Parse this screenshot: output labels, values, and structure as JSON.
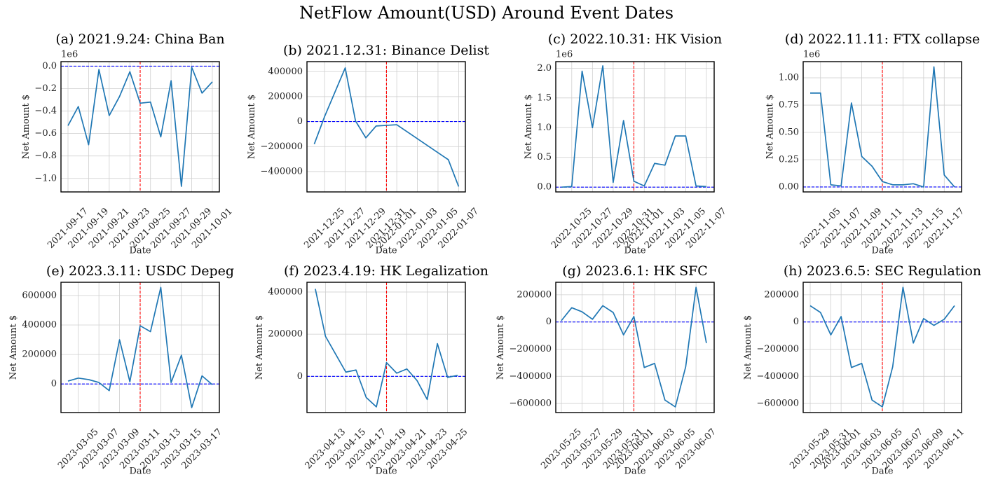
{
  "title": "NetFlow Amount(USD) Around Event Dates",
  "chart_data": [
    {
      "type": "line",
      "title": "(a) 2021.9.24: China Ban",
      "xlabel": "Date",
      "ylabel": "Net Amount $",
      "y_offset_label": "1e6",
      "x": [
        "2021-09-17",
        "2021-09-18",
        "2021-09-19",
        "2021-09-20",
        "2021-09-21",
        "2021-09-22",
        "2021-09-23",
        "2021-09-24",
        "2021-09-25",
        "2021-09-26",
        "2021-09-27",
        "2021-09-28",
        "2021-09-29",
        "2021-09-30",
        "2021-10-01"
      ],
      "values": [
        -0.53,
        -0.36,
        -0.7,
        -0.03,
        -0.44,
        -0.27,
        -0.05,
        -0.33,
        -0.32,
        -0.63,
        -0.13,
        -1.07,
        -0.01,
        -0.24,
        -0.14
      ],
      "color": "#1f77b4",
      "event_x": "2021-09-24",
      "event_color": "#ff0000",
      "hline": 0,
      "hline_color": "#0000ff",
      "grid": true,
      "xlim": [
        "2021-09-16T07:40",
        "2021-10-01T16:20"
      ],
      "xticks": [
        "2021-09-17",
        "2021-09-19",
        "2021-09-21",
        "2021-09-23",
        "2021-09-25",
        "2021-09-27",
        "2021-09-29",
        "2021-10-01"
      ],
      "ylim": [
        -1.12,
        0.04
      ],
      "yticks": [
        {
          "value": 0,
          "label": "0.0"
        },
        {
          "value": -0.2,
          "label": "−0.2"
        },
        {
          "value": -0.4,
          "label": "−0.4"
        },
        {
          "value": -0.6,
          "label": "−0.6"
        },
        {
          "value": -0.8,
          "label": "−0.8"
        },
        {
          "value": -1.0,
          "label": "−1.0"
        }
      ]
    },
    {
      "type": "line",
      "title": "(b) 2021.12.31: Binance Delist",
      "xlabel": "Date",
      "ylabel": "Net Amount $",
      "x": [
        "2021-12-24",
        "2021-12-25",
        "2021-12-27",
        "2021-12-28",
        "2021-12-29",
        "2021-12-30",
        "2022-01-01",
        "2022-01-06",
        "2022-01-07"
      ],
      "values": [
        -180000,
        40000,
        430000,
        5000,
        -130000,
        -35000,
        -25000,
        -305000,
        -520000
      ],
      "color": "#1f77b4",
      "event_x": "2021-12-31",
      "event_color": "#ff0000",
      "hline": 0,
      "hline_color": "#0000ff",
      "grid": true,
      "xlim": [
        "2021-12-23T07:00",
        "2022-01-07T15:40"
      ],
      "xticks": [
        "2021-12-25",
        "2021-12-27",
        "2021-12-29",
        "2021-12-31",
        "2022-01-01",
        "2022-01-03",
        "2022-01-05",
        "2022-01-07"
      ],
      "ylim": [
        -563000,
        480000
      ],
      "yticks": [
        400000,
        200000,
        0,
        {
          "value": -200000,
          "label": "−200000"
        },
        {
          "value": -400000,
          "label": "−400000"
        }
      ]
    },
    {
      "type": "line",
      "title": "(c) 2022.10.31: HK Vision",
      "xlabel": "Date",
      "ylabel": "Net Amount $",
      "y_offset_label": "1e6",
      "x": [
        "2022-10-24",
        "2022-10-25",
        "2022-10-26",
        "2022-10-27",
        "2022-10-28",
        "2022-10-29",
        "2022-10-30",
        "2022-10-31",
        "2022-11-01",
        "2022-11-02",
        "2022-11-03",
        "2022-11-04",
        "2022-11-05",
        "2022-11-06",
        "2022-11-07"
      ],
      "values": [
        0.0,
        0.01,
        1.95,
        1.0,
        2.04,
        0.08,
        1.12,
        0.1,
        0.02,
        0.4,
        0.37,
        0.86,
        0.86,
        0.02,
        0.01
      ],
      "color": "#1f77b4",
      "event_x": "2022-10-31",
      "event_color": "#ff0000",
      "hline": 0,
      "hline_color": "#0000ff",
      "grid": true,
      "xlim": [
        "2022-10-23T11:00",
        "2022-11-07T18:00"
      ],
      "xticks": [
        "2022-10-25",
        "2022-10-27",
        "2022-10-29",
        "2022-10-31",
        "2022-11-01",
        "2022-11-03",
        "2022-11-05",
        "2022-11-07"
      ],
      "ylim": [
        -0.08,
        2.11
      ],
      "yticks": [
        {
          "value": 0,
          "label": "0.0"
        },
        {
          "value": 0.5,
          "label": "0.5"
        },
        {
          "value": 1,
          "label": "1.0"
        },
        {
          "value": 1.5,
          "label": "1.5"
        },
        {
          "value": 2,
          "label": "2.0"
        }
      ]
    },
    {
      "type": "line",
      "title": "(d) 2022.11.11: FTX collapse",
      "xlabel": "Date",
      "ylabel": "Net Amount $",
      "y_offset_label": "1e6",
      "x": [
        "2022-11-04",
        "2022-11-05",
        "2022-11-06",
        "2022-11-07",
        "2022-11-08",
        "2022-11-09",
        "2022-11-10",
        "2022-11-11",
        "2022-11-12",
        "2022-11-13",
        "2022-11-14",
        "2022-11-15",
        "2022-11-16",
        "2022-11-17",
        "2022-11-18"
      ],
      "values": [
        0.86,
        0.86,
        0.02,
        0.01,
        0.77,
        0.28,
        0.19,
        0.05,
        0.02,
        0.02,
        0.03,
        0.0,
        1.1,
        0.11,
        0.0
      ],
      "color": "#1f77b4",
      "event_x": "2022-11-11",
      "event_color": "#ff0000",
      "hline": 0,
      "hline_color": "#0000ff",
      "grid": true,
      "xlim": [
        "2022-11-03T07:40",
        "2022-11-18T16:20"
      ],
      "xticks": [
        "2022-11-05",
        "2022-11-07",
        "2022-11-09",
        "2022-11-11",
        "2022-11-13",
        "2022-11-15",
        "2022-11-17"
      ],
      "ylim": [
        -0.045,
        1.148
      ],
      "yticks": [
        {
          "value": 0,
          "label": "0.00"
        },
        {
          "value": 0.25,
          "label": "0.25"
        },
        {
          "value": 0.5,
          "label": "0.50"
        },
        {
          "value": 0.75,
          "label": "0.75"
        },
        {
          "value": 1,
          "label": "1.00"
        }
      ]
    },
    {
      "type": "line",
      "title": "(e) 2023.3.11: USDC Depeg",
      "xlabel": "Date",
      "ylabel": "Net Amount $",
      "x": [
        "2023-03-04",
        "2023-03-05",
        "2023-03-06",
        "2023-03-07",
        "2023-03-08",
        "2023-03-09",
        "2023-03-10",
        "2023-03-11",
        "2023-03-12",
        "2023-03-13",
        "2023-03-14",
        "2023-03-15",
        "2023-03-16",
        "2023-03-17",
        "2023-03-18"
      ],
      "values": [
        20000,
        40000,
        30000,
        10000,
        -45000,
        300000,
        15000,
        395000,
        355000,
        655000,
        10000,
        195000,
        -160000,
        55000,
        -5000
      ],
      "color": "#1f77b4",
      "event_x": "2023-03-11",
      "event_color": "#ff0000",
      "hline": 0,
      "hline_color": "#0000ff",
      "grid": true,
      "xlim": [
        "2023-03-03T07:40",
        "2023-03-18T16:20"
      ],
      "xticks": [
        "2023-03-05",
        "2023-03-07",
        "2023-03-09",
        "2023-03-11",
        "2023-03-13",
        "2023-03-15",
        "2023-03-17"
      ],
      "ylim": [
        -193700,
        689800
      ],
      "yticks": [
        0,
        200000,
        400000,
        600000
      ]
    },
    {
      "type": "line",
      "title": "(f) 2023.4.19: HK Legalization",
      "xlabel": "Date",
      "ylabel": "Net Amount $",
      "x": [
        "2023-04-12",
        "2023-04-13",
        "2023-04-15",
        "2023-04-16",
        "2023-04-17",
        "2023-04-18",
        "2023-04-19",
        "2023-04-20",
        "2023-04-21",
        "2023-04-22",
        "2023-04-23",
        "2023-04-24",
        "2023-04-25",
        "2023-04-26"
      ],
      "values": [
        415000,
        190000,
        20000,
        30000,
        -100000,
        -145000,
        65000,
        15000,
        35000,
        -20000,
        -110000,
        155000,
        -5000,
        5000
      ],
      "color": "#1f77b4",
      "event_x": "2023-04-19",
      "event_color": "#ff0000",
      "hline": 0,
      "hline_color": "#0000ff",
      "grid": true,
      "xlim": [
        "2023-04-11T04:20",
        "2023-04-26T18:00"
      ],
      "xticks": [
        "2023-04-13",
        "2023-04-15",
        "2023-04-17",
        "2023-04-19",
        "2023-04-21",
        "2023-04-23",
        "2023-04-25"
      ],
      "ylim": [
        -171900,
        446300
      ],
      "yticks": [
        0,
        200000,
        400000
      ]
    },
    {
      "type": "line",
      "title": "(g) 2023.6.1: HK SFC",
      "xlabel": "Date",
      "ylabel": "Net Amount $",
      "x": [
        "2023-05-25",
        "2023-05-26",
        "2023-05-27",
        "2023-05-28",
        "2023-05-29",
        "2023-05-30",
        "2023-05-31",
        "2023-06-01",
        "2023-06-02",
        "2023-06-03",
        "2023-06-04",
        "2023-06-05",
        "2023-06-06",
        "2023-06-07",
        "2023-06-08"
      ],
      "values": [
        10000,
        105000,
        75000,
        20000,
        120000,
        70000,
        -95000,
        40000,
        -335000,
        -305000,
        -575000,
        -625000,
        -330000,
        255000,
        -155000
      ],
      "color": "#1f77b4",
      "event_x": "2023-06-01",
      "event_color": "#ff0000",
      "hline": 0,
      "hline_color": "#0000ff",
      "grid": true,
      "xlim": [
        "2023-05-24T11:00",
        "2023-06-08T18:00"
      ],
      "xticks": [
        "2023-05-25",
        "2023-05-27",
        "2023-05-29",
        "2023-05-31",
        "2023-06-01",
        "2023-06-03",
        "2023-06-05",
        "2023-06-07"
      ],
      "ylim": [
        -666700,
        292300
      ],
      "yticks": [
        200000,
        0,
        {
          "value": -200000,
          "label": "−200000"
        },
        {
          "value": -400000,
          "label": "−400000"
        },
        {
          "value": -600000,
          "label": "−600000"
        }
      ]
    },
    {
      "type": "line",
      "title": "(h) 2023.6.5: SEC Regulation",
      "xlabel": "Date",
      "ylabel": "Net Amount $",
      "x": [
        "2023-05-29",
        "2023-05-30",
        "2023-05-31",
        "2023-06-01",
        "2023-06-02",
        "2023-06-03",
        "2023-06-04",
        "2023-06-05",
        "2023-06-06",
        "2023-06-07",
        "2023-06-08",
        "2023-06-09",
        "2023-06-10",
        "2023-06-11",
        "2023-06-12"
      ],
      "values": [
        120000,
        70000,
        -95000,
        40000,
        -335000,
        -305000,
        -575000,
        -625000,
        -330000,
        255000,
        -155000,
        25000,
        -25000,
        20000,
        120000
      ],
      "color": "#1f77b4",
      "event_x": "2023-06-05",
      "event_color": "#ff0000",
      "hline": 0,
      "hline_color": "#0000ff",
      "grid": true,
      "xlim": [
        "2023-05-28T07:40",
        "2023-06-12T16:20"
      ],
      "xticks": [
        "2023-05-29",
        "2023-05-31",
        "2023-06-01",
        "2023-06-03",
        "2023-06-05",
        "2023-06-07",
        "2023-06-09",
        "2023-06-11"
      ],
      "ylim": [
        -666700,
        292300
      ],
      "yticks": [
        200000,
        0,
        {
          "value": -200000,
          "label": "−200000"
        },
        {
          "value": -400000,
          "label": "−400000"
        },
        {
          "value": -600000,
          "label": "−600000"
        }
      ]
    }
  ]
}
